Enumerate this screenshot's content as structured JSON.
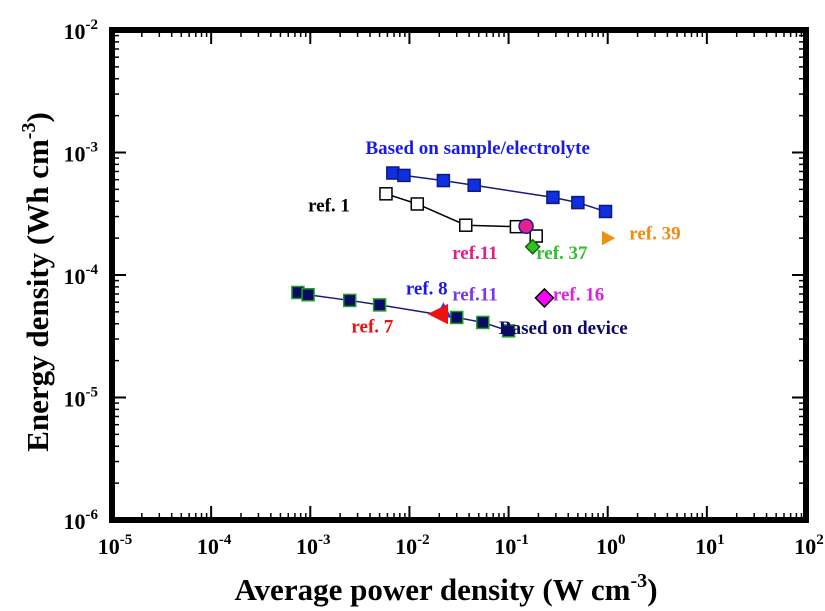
{
  "chart_data": {
    "type": "scatter",
    "title": "",
    "xlabel": "Average power density (W cm-3)",
    "ylabel": "Energy density (Wh cm-3)",
    "x_scale": "log",
    "y_scale": "log",
    "xlim": [
      1e-05,
      100
    ],
    "ylim": [
      1e-06,
      0.01
    ],
    "x_ticks": [
      {
        "value": 1e-05,
        "base": "10",
        "exp": "-5"
      },
      {
        "value": 0.0001,
        "base": "10",
        "exp": "-4"
      },
      {
        "value": 0.001,
        "base": "10",
        "exp": "-3"
      },
      {
        "value": 0.01,
        "base": "10",
        "exp": "-2"
      },
      {
        "value": 0.1,
        "base": "10",
        "exp": "-1"
      },
      {
        "value": 1,
        "base": "10",
        "exp": "0"
      },
      {
        "value": 10,
        "base": "10",
        "exp": "1"
      },
      {
        "value": 100,
        "base": "10",
        "exp": "2"
      }
    ],
    "y_ticks": [
      {
        "value": 1e-06,
        "base": "10",
        "exp": "-6"
      },
      {
        "value": 1e-05,
        "base": "10",
        "exp": "-5"
      },
      {
        "value": 0.0001,
        "base": "10",
        "exp": "-4"
      },
      {
        "value": 0.001,
        "base": "10",
        "exp": "-3"
      },
      {
        "value": 0.01,
        "base": "10",
        "exp": "-2"
      }
    ],
    "grid": false,
    "series": [
      {
        "marker": "square-filled",
        "line": true,
        "color": "#1030e0",
        "stroke": "#0a1a80",
        "x": [
          0.0068,
          0.0088,
          0.022,
          0.045,
          0.28,
          0.5,
          0.95
        ],
        "y": [
          0.00068,
          0.00065,
          0.00059,
          0.00054,
          0.00043,
          0.00039,
          0.00033
        ]
      },
      {
        "marker": "square-open",
        "line": true,
        "color": "#ffffff",
        "stroke": "#000000",
        "x": [
          0.0058,
          0.012,
          0.037,
          0.12,
          0.19
        ],
        "y": [
          0.00046,
          0.00038,
          0.000255,
          0.000248,
          0.000208
        ]
      },
      {
        "marker": "square-filled",
        "line": true,
        "color": "#0a0a66",
        "stroke": "#1fa01f",
        "x": [
          0.00075,
          0.00095,
          0.0025,
          0.005,
          0.03,
          0.055,
          0.1
        ],
        "y": [
          7.2e-05,
          6.9e-05,
          6.2e-05,
          5.7e-05,
          4.5e-05,
          4.1e-05,
          3.5e-05
        ]
      },
      {
        "marker": "circle",
        "color": "#e8208a",
        "stroke": "#1a1aa0",
        "x": [
          0.15
        ],
        "y": [
          0.00025
        ]
      },
      {
        "marker": "diamond",
        "color": "#30c020",
        "stroke": "#106010",
        "x": [
          0.175
        ],
        "y": [
          0.00017
        ]
      },
      {
        "marker": "triangle-right",
        "color": "#f09010",
        "stroke": "#f09010",
        "x": [
          1.0
        ],
        "y": [
          0.0002
        ]
      },
      {
        "marker": "diamond",
        "color": "#ff00ff",
        "stroke": "#000000",
        "x": [
          0.23
        ],
        "y": [
          6.5e-05
        ]
      },
      {
        "marker": "triangle-up",
        "color": "#2040e0",
        "stroke": "#2040e0",
        "x": [
          0.022
        ],
        "y": [
          5.1e-05
        ]
      },
      {
        "marker": "triangle-left",
        "color": "#ee1111",
        "stroke": "#ee1111",
        "x": [
          0.02
        ],
        "y": [
          4.8e-05
        ]
      }
    ],
    "annotations": [
      {
        "text": "Based on sample/electrolyte",
        "color": "#1a1ae6",
        "x": 0.0036,
        "y": 0.00097
      },
      {
        "text": "ref. 1",
        "color": "#000000",
        "x": 0.00095,
        "y": 0.00033
      },
      {
        "text": "ref.11",
        "color": "#e0208a",
        "x": 0.027,
        "y": 0.000135
      },
      {
        "text": "ref. 37",
        "color": "#2ec02e",
        "x": 0.19,
        "y": 0.000135
      },
      {
        "text": "ref. 39",
        "color": "#f08a10",
        "x": 1.65,
        "y": 0.000195
      },
      {
        "text": "ref. 8",
        "color": "#1a1ae6",
        "x": 0.0092,
        "y": 6.9e-05
      },
      {
        "text": "ref.11",
        "color": "#7a3ae0",
        "x": 0.027,
        "y": 6.2e-05
      },
      {
        "text": "ref. 16",
        "color": "#e020e0",
        "x": 0.28,
        "y": 6.2e-05
      },
      {
        "text": "ref. 7",
        "color": "#ee1111",
        "x": 0.0026,
        "y": 3.4e-05
      },
      {
        "text": "Based on device",
        "color": "#0a0a66",
        "x": 0.08,
        "y": 3.3e-05
      }
    ]
  }
}
